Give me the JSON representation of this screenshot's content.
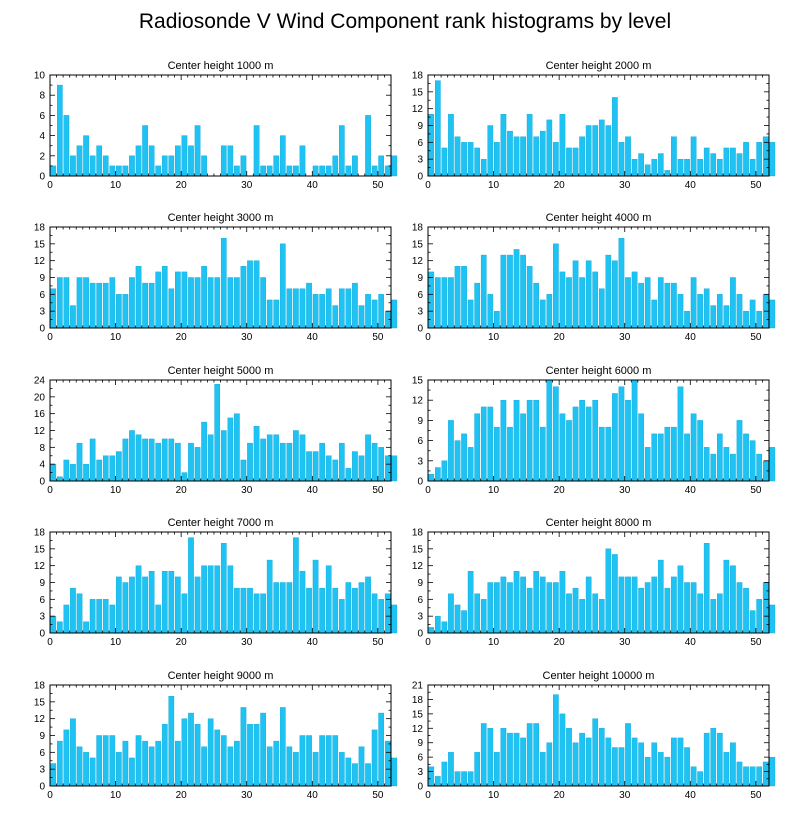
{
  "title": "Radiosonde V Wind Component rank histograms by level",
  "colors": {
    "bar": "#1ec3f3",
    "bar_stroke": "#0aa6d6",
    "axis": "#000000"
  },
  "chart_data": [
    {
      "type": "bar",
      "title": "Center height 1000 m",
      "xlim": [
        0,
        52
      ],
      "ylim": [
        0,
        10
      ],
      "xticks": [
        0,
        10,
        20,
        30,
        40,
        50
      ],
      "yticks": [
        0,
        2,
        4,
        6,
        8,
        10
      ],
      "values": [
        1,
        9,
        6,
        2,
        3,
        4,
        2,
        3,
        2,
        1,
        1,
        1,
        2,
        3,
        5,
        3,
        1,
        2,
        2,
        3,
        4,
        3,
        5,
        2,
        0,
        0,
        3,
        3,
        1,
        2,
        0,
        5,
        1,
        1,
        2,
        4,
        1,
        1,
        3,
        0,
        1,
        1,
        1,
        2,
        5,
        1,
        2,
        0,
        6,
        1,
        2,
        1,
        2
      ]
    },
    {
      "type": "bar",
      "title": "Center height 2000 m",
      "xlim": [
        0,
        52
      ],
      "ylim": [
        0,
        18
      ],
      "xticks": [
        0,
        10,
        20,
        30,
        40,
        50
      ],
      "yticks": [
        0,
        3,
        6,
        9,
        12,
        15,
        18
      ],
      "values": [
        11,
        17,
        5,
        11,
        7,
        6,
        6,
        5,
        3,
        9,
        6,
        11,
        8,
        7,
        7,
        11,
        7,
        8,
        10,
        6,
        11,
        5,
        5,
        7,
        9,
        9,
        10,
        9,
        14,
        6,
        7,
        3,
        4,
        2,
        3,
        4,
        1,
        7,
        3,
        3,
        7,
        3,
        5,
        4,
        3,
        5,
        5,
        4,
        6,
        3,
        6,
        7,
        6
      ]
    },
    {
      "type": "bar",
      "title": "Center height 3000 m",
      "xlim": [
        0,
        52
      ],
      "ylim": [
        0,
        18
      ],
      "xticks": [
        0,
        10,
        20,
        30,
        40,
        50
      ],
      "yticks": [
        0,
        3,
        6,
        9,
        12,
        15,
        18
      ],
      "values": [
        7,
        9,
        9,
        4,
        9,
        9,
        8,
        8,
        8,
        9,
        6,
        6,
        9,
        11,
        8,
        8,
        10,
        11,
        7,
        10,
        10,
        9,
        9,
        11,
        9,
        9,
        16,
        9,
        9,
        11,
        12,
        12,
        9,
        5,
        5,
        15,
        7,
        7,
        7,
        8,
        6,
        6,
        7,
        4,
        7,
        7,
        8,
        4,
        6,
        5,
        6,
        3,
        5
      ]
    },
    {
      "type": "bar",
      "title": "Center height 4000 m",
      "xlim": [
        0,
        52
      ],
      "ylim": [
        0,
        18
      ],
      "xticks": [
        0,
        10,
        20,
        30,
        40,
        50
      ],
      "yticks": [
        0,
        3,
        6,
        9,
        12,
        15,
        18
      ],
      "values": [
        10,
        9,
        9,
        9,
        11,
        11,
        5,
        8,
        13,
        6,
        3,
        13,
        13,
        14,
        13,
        11,
        8,
        5,
        6,
        15,
        10,
        9,
        12,
        9,
        12,
        10,
        7,
        13,
        12,
        16,
        9,
        10,
        8,
        9,
        5,
        9,
        8,
        8,
        6,
        3,
        9,
        6,
        7,
        4,
        6,
        4,
        9,
        6,
        3,
        5,
        3,
        6,
        5
      ]
    },
    {
      "type": "bar",
      "title": "Center height 5000 m",
      "xlim": [
        0,
        52
      ],
      "ylim": [
        0,
        24
      ],
      "xticks": [
        0,
        10,
        20,
        30,
        40,
        50
      ],
      "yticks": [
        0,
        4,
        8,
        12,
        16,
        20,
        24
      ],
      "values": [
        4,
        1,
        5,
        4,
        9,
        4,
        10,
        5,
        6,
        6,
        7,
        10,
        12,
        11,
        10,
        10,
        9,
        10,
        10,
        9,
        2,
        9,
        8,
        14,
        11,
        23,
        12,
        15,
        16,
        5,
        9,
        13,
        10,
        11,
        11,
        9,
        9,
        12,
        11,
        7,
        7,
        9,
        6,
        5,
        9,
        3,
        7,
        6,
        11,
        9,
        8,
        6,
        6
      ]
    },
    {
      "type": "bar",
      "title": "Center height 6000 m",
      "xlim": [
        0,
        52
      ],
      "ylim": [
        0,
        15
      ],
      "xticks": [
        0,
        10,
        20,
        30,
        40,
        50
      ],
      "yticks": [
        0,
        3,
        6,
        9,
        12,
        15
      ],
      "values": [
        1,
        2,
        3,
        9,
        6,
        7,
        5,
        10,
        11,
        11,
        8,
        12,
        8,
        12,
        10,
        12,
        12,
        8,
        15,
        14,
        10,
        9,
        11,
        12,
        11,
        12,
        8,
        8,
        13,
        14,
        12,
        15,
        10,
        5,
        7,
        7,
        8,
        8,
        14,
        7,
        10,
        9,
        5,
        4,
        7,
        5,
        4,
        9,
        7,
        6,
        4,
        3,
        5
      ]
    },
    {
      "type": "bar",
      "title": "Center height 7000 m",
      "xlim": [
        0,
        52
      ],
      "ylim": [
        0,
        18
      ],
      "xticks": [
        0,
        10,
        20,
        30,
        40,
        50
      ],
      "yticks": [
        0,
        3,
        6,
        9,
        12,
        15,
        18
      ],
      "values": [
        3,
        2,
        5,
        8,
        7,
        2,
        6,
        6,
        6,
        5,
        10,
        9,
        10,
        12,
        10,
        11,
        5,
        11,
        11,
        10,
        7,
        17,
        10,
        12,
        12,
        12,
        16,
        12,
        8,
        8,
        8,
        7,
        7,
        13,
        9,
        9,
        9,
        17,
        11,
        8,
        13,
        8,
        12,
        8,
        6,
        9,
        8,
        9,
        10,
        7,
        6,
        7,
        5
      ]
    },
    {
      "type": "bar",
      "title": "Center height 8000 m",
      "xlim": [
        0,
        52
      ],
      "ylim": [
        0,
        18
      ],
      "xticks": [
        0,
        10,
        20,
        30,
        40,
        50
      ],
      "yticks": [
        0,
        3,
        6,
        9,
        12,
        15,
        18
      ],
      "values": [
        1,
        3,
        2,
        7,
        5,
        4,
        11,
        7,
        6,
        9,
        9,
        10,
        9,
        11,
        10,
        8,
        11,
        10,
        9,
        9,
        11,
        7,
        8,
        6,
        10,
        7,
        6,
        15,
        14,
        10,
        10,
        10,
        8,
        9,
        10,
        13,
        8,
        10,
        12,
        9,
        9,
        7,
        16,
        6,
        7,
        13,
        12,
        9,
        8,
        4,
        6,
        9,
        5
      ]
    },
    {
      "type": "bar",
      "title": "Center height 9000 m",
      "xlim": [
        0,
        52
      ],
      "ylim": [
        0,
        18
      ],
      "xticks": [
        0,
        10,
        20,
        30,
        40,
        50
      ],
      "yticks": [
        0,
        3,
        6,
        9,
        12,
        15,
        18
      ],
      "values": [
        4,
        8,
        10,
        12,
        7,
        6,
        5,
        9,
        9,
        9,
        6,
        8,
        5,
        9,
        8,
        7,
        8,
        11,
        16,
        8,
        12,
        13,
        11,
        7,
        12,
        10,
        9,
        7,
        8,
        14,
        11,
        11,
        13,
        7,
        8,
        14,
        7,
        6,
        9,
        9,
        6,
        9,
        9,
        9,
        6,
        5,
        4,
        7,
        4,
        10,
        13,
        8,
        5
      ]
    },
    {
      "type": "bar",
      "title": "Center height 10000 m",
      "xlim": [
        0,
        52
      ],
      "ylim": [
        0,
        21
      ],
      "xticks": [
        0,
        10,
        20,
        30,
        40,
        50
      ],
      "yticks": [
        0,
        3,
        6,
        9,
        12,
        15,
        18,
        21
      ],
      "values": [
        4,
        2,
        5,
        7,
        3,
        3,
        3,
        7,
        13,
        12,
        7,
        12,
        11,
        11,
        10,
        13,
        13,
        7,
        9,
        19,
        15,
        12,
        9,
        11,
        10,
        14,
        12,
        10,
        8,
        8,
        13,
        10,
        9,
        6,
        9,
        7,
        6,
        10,
        10,
        8,
        4,
        3,
        11,
        12,
        11,
        7,
        9,
        5,
        4,
        4,
        4,
        5,
        6
      ]
    }
  ]
}
